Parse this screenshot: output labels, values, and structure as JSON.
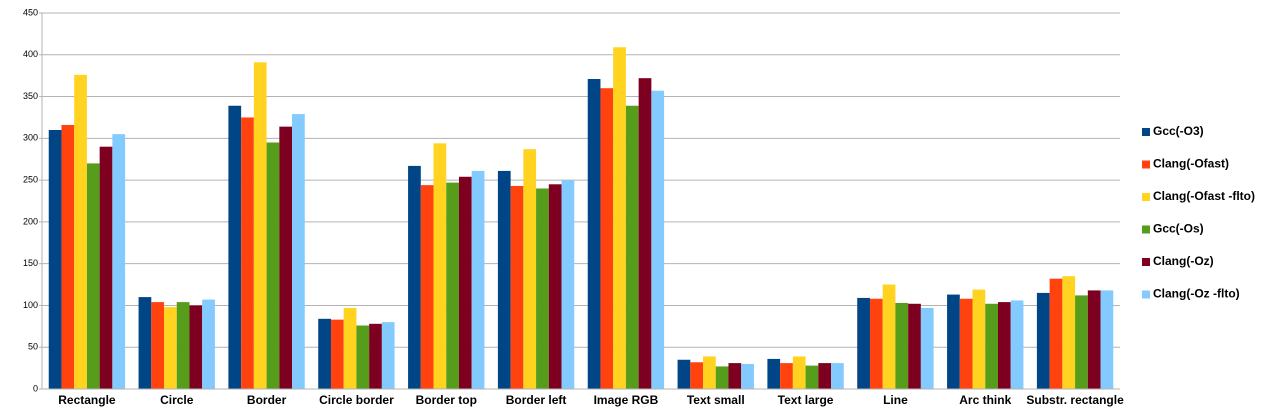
{
  "chart_data": {
    "type": "bar",
    "categories": [
      "Rectangle",
      "Circle",
      "Border",
      "Circle border",
      "Border top",
      "Border left",
      "Image RGB",
      "Text small",
      "Text large",
      "Line",
      "Arc think",
      "Substr. rectangle"
    ],
    "series": [
      {
        "name": "Gcc(-O3)",
        "color": "#004586",
        "values": [
          310,
          110,
          339,
          84,
          267,
          261,
          371,
          35,
          36,
          109,
          113,
          115
        ]
      },
      {
        "name": "Clang(-Ofast)",
        "color": "#ff420e",
        "values": [
          316,
          104,
          325,
          83,
          244,
          243,
          360,
          32,
          31,
          108,
          108,
          132
        ]
      },
      {
        "name": "Clang(-Ofast -flto)",
        "color": "#ffd320",
        "values": [
          376,
          98,
          391,
          97,
          294,
          287,
          409,
          39,
          39,
          125,
          119,
          135
        ]
      },
      {
        "name": "Gcc(-Os)",
        "color": "#579d1c",
        "values": [
          270,
          104,
          295,
          76,
          247,
          240,
          339,
          27,
          28,
          103,
          102,
          112
        ]
      },
      {
        "name": "Clang(-Oz)",
        "color": "#7e0021",
        "values": [
          290,
          100,
          314,
          78,
          254,
          245,
          372,
          31,
          31,
          102,
          104,
          118
        ]
      },
      {
        "name": "Clang(-Oz -flto)",
        "color": "#83caff",
        "values": [
          305,
          107,
          329,
          80,
          261,
          250,
          357,
          30,
          31,
          97,
          106,
          118
        ]
      }
    ],
    "ylim": [
      0,
      450
    ],
    "yticks": [
      0,
      50,
      100,
      150,
      200,
      250,
      300,
      350,
      400,
      450
    ],
    "grid": true,
    "legend": "right"
  }
}
